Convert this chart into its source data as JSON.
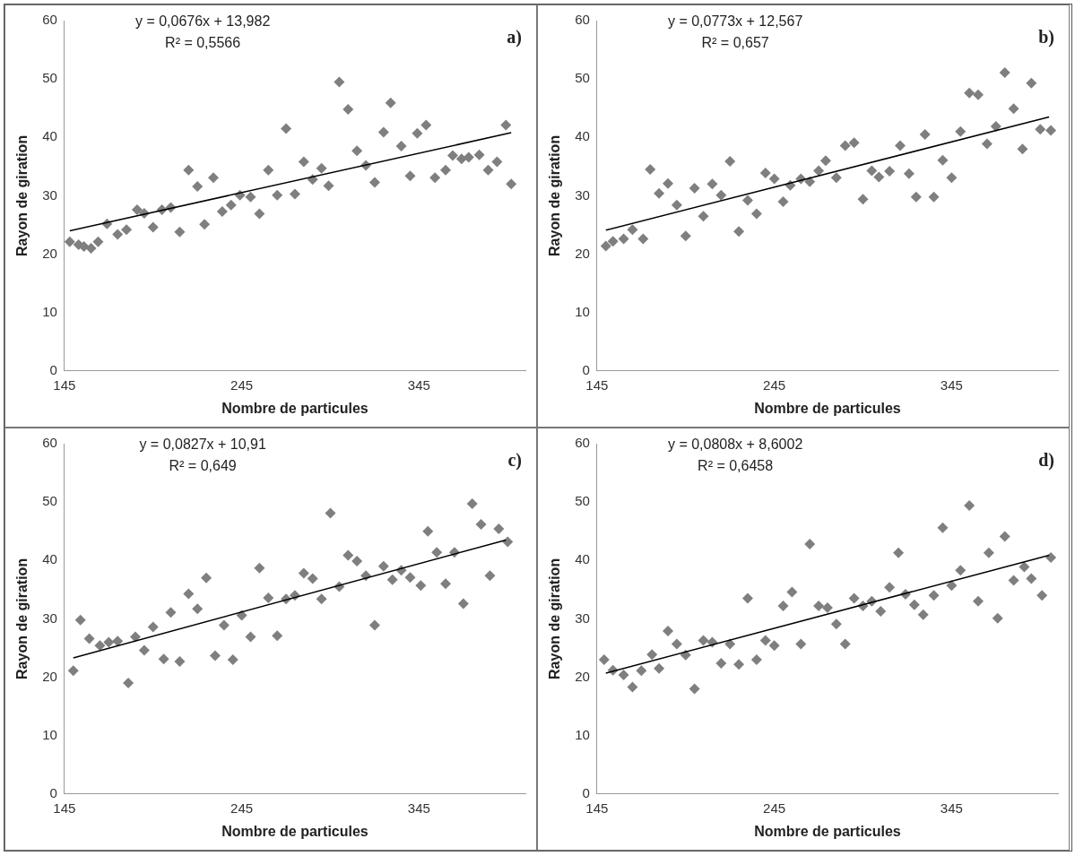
{
  "chart_data": [
    {
      "type": "scatter",
      "xlabel": "Nombre de particules",
      "ylabel": "Rayon de giration",
      "xlim": [
        145,
        405
      ],
      "ylim": [
        0,
        60
      ],
      "xticks": [
        145,
        245,
        345
      ],
      "yticks": [
        0,
        10,
        20,
        30,
        40,
        50,
        60
      ],
      "grid": false,
      "legend": false,
      "marker": "diamond",
      "annotations": [
        "y = 0,0676x + 13,982",
        "R² = 0,5566",
        "a)"
      ],
      "series": [
        {
          "type": "scatter",
          "color": "#7f7f7f",
          "x": [
            148,
            153,
            156,
            160,
            164,
            169,
            175,
            180,
            186,
            190,
            195,
            200,
            205,
            210,
            215,
            220,
            224,
            229,
            234,
            239,
            244,
            250,
            255,
            260,
            265,
            270,
            275,
            280,
            285,
            290,
            294,
            300,
            305,
            310,
            315,
            320,
            325,
            329,
            335,
            340,
            344,
            349,
            354,
            360,
            364,
            369,
            373,
            379,
            384,
            389,
            394,
            397
          ],
          "values": [
            22.1,
            21.6,
            21.3,
            21,
            22.1,
            25.2,
            23.4,
            24.2,
            27.6,
            27,
            24.6,
            27.6,
            28,
            23.8,
            34.4,
            31.6,
            25.1,
            33.1,
            27.3,
            28.4,
            30.1,
            29.8,
            26.9,
            34.4,
            30.1,
            41.5,
            30.3,
            35.8,
            32.8,
            34.7,
            31.7,
            49.5,
            44.8,
            37.7,
            35.2,
            32.3,
            40.9,
            45.9,
            38.5,
            33.4,
            40.7,
            42.1,
            33.1,
            34.4,
            36.9,
            36.3,
            36.6,
            37,
            34.4,
            35.8,
            42.1,
            32
          ]
        },
        {
          "type": "line",
          "color": "#000000",
          "marker": "none",
          "x": [
            148,
            397
          ],
          "values": [
            24,
            40.8
          ]
        }
      ]
    },
    {
      "type": "scatter",
      "xlabel": "Nombre de particules",
      "ylabel": "Rayon de giration",
      "xlim": [
        145,
        405
      ],
      "ylim": [
        0,
        60
      ],
      "xticks": [
        145,
        245,
        345
      ],
      "yticks": [
        0,
        10,
        20,
        30,
        40,
        50,
        60
      ],
      "grid": false,
      "legend": false,
      "marker": "diamond",
      "annotations": [
        "y = 0,0773x + 12,567",
        "R² = 0,657",
        "b)"
      ],
      "series": [
        {
          "type": "scatter",
          "color": "#7f7f7f",
          "x": [
            150,
            154,
            160,
            165,
            171,
            175,
            180,
            185,
            190,
            195,
            200,
            205,
            210,
            215,
            220,
            225,
            230,
            235,
            240,
            245,
            250,
            254,
            260,
            265,
            270,
            274,
            280,
            285,
            290,
            295,
            300,
            304,
            310,
            316,
            321,
            325,
            330,
            335,
            340,
            345,
            350,
            355,
            360,
            365,
            370,
            375,
            380,
            385,
            390,
            395,
            401
          ],
          "values": [
            21.4,
            22.2,
            22.6,
            24.2,
            22.6,
            34.5,
            30.4,
            32.1,
            28.4,
            23.1,
            31.3,
            26.5,
            32,
            30.1,
            35.9,
            23.9,
            29.2,
            26.9,
            33.9,
            32.9,
            29,
            31.8,
            32.9,
            32.4,
            34.3,
            36,
            33.1,
            38.6,
            39.1,
            29.4,
            34.3,
            33.2,
            34.2,
            38.6,
            33.8,
            29.8,
            40.5,
            29.8,
            36.1,
            33.1,
            41,
            47.6,
            47.3,
            38.9,
            41.9,
            51.1,
            44.9,
            38,
            49.3,
            41.4,
            41.2
          ]
        },
        {
          "type": "line",
          "color": "#000000",
          "marker": "none",
          "x": [
            150,
            400
          ],
          "values": [
            24.1,
            43.5
          ]
        }
      ]
    },
    {
      "type": "scatter",
      "xlabel": "Nombre de particules",
      "ylabel": "Rayon de giration",
      "xlim": [
        145,
        405
      ],
      "ylim": [
        0,
        60
      ],
      "xticks": [
        145,
        245,
        345
      ],
      "yticks": [
        0,
        10,
        20,
        30,
        40,
        50,
        60
      ],
      "grid": false,
      "legend": false,
      "marker": "diamond",
      "annotations": [
        "y = 0,0827x + 10,91",
        "R² = 0,649",
        "c)"
      ],
      "series": [
        {
          "type": "scatter",
          "color": "#7f7f7f",
          "x": [
            150,
            154,
            159,
            165,
            170,
            175,
            181,
            185,
            190,
            195,
            201,
            205,
            210,
            215,
            220,
            225,
            230,
            235,
            240,
            245,
            250,
            255,
            260,
            265,
            270,
            275,
            280,
            285,
            290,
            295,
            300,
            305,
            310,
            315,
            320,
            325,
            330,
            335,
            340,
            346,
            350,
            355,
            360,
            365,
            370,
            375,
            380,
            385,
            390,
            395
          ],
          "values": [
            21.1,
            29.8,
            26.6,
            25.4,
            26,
            26.2,
            19,
            26.9,
            24.6,
            28.6,
            23.1,
            31.1,
            22.7,
            34.3,
            31.7,
            37,
            23.7,
            28.9,
            23,
            30.6,
            26.9,
            38.7,
            33.6,
            27.1,
            33.4,
            34,
            37.8,
            36.9,
            33.4,
            48.1,
            35.5,
            40.9,
            39.9,
            37.4,
            28.9,
            39,
            36.7,
            38.3,
            37.1,
            35.7,
            45,
            41.4,
            36,
            41.4,
            32.6,
            49.7,
            46.2,
            37.4,
            45.4,
            43.2
          ]
        },
        {
          "type": "line",
          "color": "#000000",
          "marker": "none",
          "x": [
            150,
            394
          ],
          "values": [
            23.3,
            43.5
          ]
        }
      ]
    },
    {
      "type": "scatter",
      "xlabel": "Nombre de particules",
      "ylabel": "Rayon de giration",
      "xlim": [
        145,
        405
      ],
      "ylim": [
        0,
        60
      ],
      "xticks": [
        145,
        245,
        345
      ],
      "yticks": [
        0,
        10,
        20,
        30,
        40,
        50,
        60
      ],
      "grid": false,
      "legend": false,
      "marker": "diamond",
      "annotations": [
        "y = 0,0808x + 8,6002",
        "R² = 0,6458",
        "d)"
      ],
      "series": [
        {
          "type": "scatter",
          "color": "#7f7f7f",
          "x": [
            149,
            154,
            160,
            165,
            170,
            176,
            180,
            185,
            190,
            195,
            200,
            205,
            210,
            215,
            220,
            225,
            230,
            235,
            240,
            245,
            250,
            255,
            260,
            265,
            270,
            275,
            280,
            285,
            290,
            295,
            300,
            305,
            310,
            315,
            319,
            324,
            329,
            335,
            340,
            345,
            350,
            355,
            360,
            366,
            371,
            375,
            380,
            386,
            390,
            396,
            401
          ],
          "values": [
            23,
            21.2,
            20.4,
            18.3,
            21.1,
            23.9,
            21.5,
            27.9,
            25.7,
            23.8,
            18,
            26.3,
            26,
            22.4,
            25.7,
            22.2,
            33.5,
            23,
            26.3,
            25.4,
            32.2,
            34.6,
            25.7,
            42.8,
            32.2,
            31.9,
            29.1,
            25.7,
            33.5,
            32.2,
            33,
            31.3,
            35.4,
            41.3,
            34.2,
            32.4,
            30.7,
            34,
            45.6,
            35.7,
            38.3,
            49.4,
            33,
            41.3,
            30.1,
            44.1,
            36.6,
            38.9,
            36.9,
            34,
            40.5
          ]
        },
        {
          "type": "line",
          "color": "#000000",
          "marker": "none",
          "x": [
            150,
            400
          ],
          "values": [
            20.7,
            40.9
          ]
        }
      ]
    }
  ]
}
